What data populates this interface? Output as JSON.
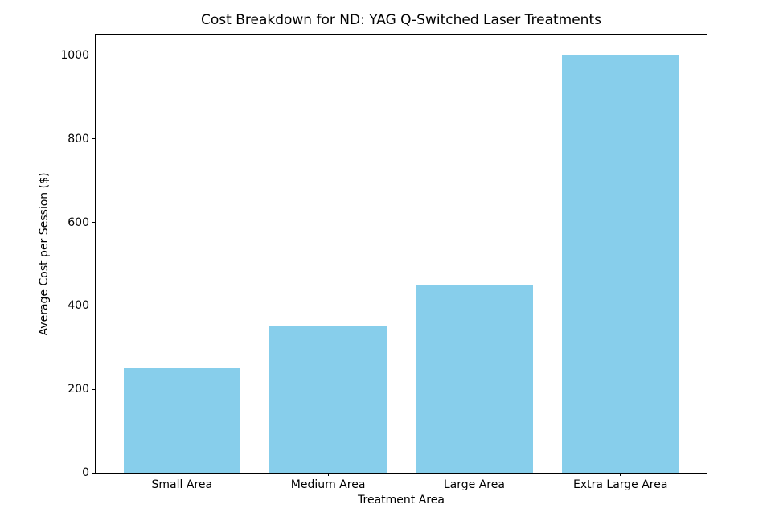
{
  "figure": {
    "background": "#ffffff",
    "spine_color": "#000000",
    "text_color": "#000000"
  },
  "chart_data": {
    "type": "bar",
    "title": "Cost Breakdown for ND: YAG Q-Switched Laser Treatments",
    "xlabel": "Treatment Area",
    "ylabel": "Average Cost per Session ($)",
    "categories": [
      "Small Area",
      "Medium Area",
      "Large Area",
      "Extra Large Area"
    ],
    "values": [
      250,
      350,
      450,
      1000
    ],
    "bar_color": "#87CEEB",
    "bar_width": 0.8,
    "xlim": [
      -0.59,
      3.59
    ],
    "ylim": [
      0,
      1050
    ],
    "yticks": [
      0,
      200,
      400,
      600,
      800,
      1000
    ],
    "grid": false,
    "legend": "none"
  }
}
